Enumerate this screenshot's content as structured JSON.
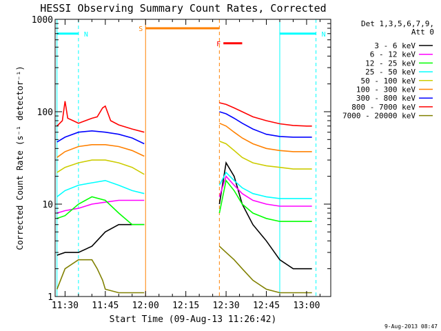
{
  "chart_data": {
    "type": "line",
    "title": "HESSI Observing Summary Count Rates, Corrected",
    "xlabel": "Start Time (09-Aug-13 11:26:42)",
    "ylabel": "Corrected Count Rate (s⁻¹ detector⁻¹)",
    "yscale": "log",
    "ylim": [
      1,
      1000
    ],
    "xlim_minutes": [
      -3.7,
      99
    ],
    "xticks": [
      {
        "value": 0,
        "label": "11:30"
      },
      {
        "value": 15,
        "label": "11:45"
      },
      {
        "value": 30,
        "label": "12:00"
      },
      {
        "value": 45,
        "label": "12:15"
      },
      {
        "value": 60,
        "label": "12:30"
      },
      {
        "value": 75,
        "label": "12:45"
      },
      {
        "value": 90,
        "label": "13:00"
      }
    ],
    "yticks": [
      {
        "value": 1,
        "label": "1"
      },
      {
        "value": 10,
        "label": "10"
      },
      {
        "value": 100,
        "label": "100"
      },
      {
        "value": 1000,
        "label": "1000"
      }
    ],
    "legend_title": [
      "Det 1,3,5,6,7,9,",
      "Att 0"
    ],
    "legend_position": "right",
    "footer_date": "9-Aug-2013 08:47",
    "gap_minutes": [
      30,
      57
    ],
    "series": [
      {
        "name": "3 - 6 keV",
        "color": "#000000",
        "x": [
          -3,
          0,
          5,
          10,
          15,
          20,
          25,
          29.5,
          57.5,
          60,
          63,
          66,
          70,
          75,
          80,
          85,
          90,
          92
        ],
        "y": [
          2.8,
          3,
          3,
          3.5,
          5,
          6,
          6,
          6,
          10,
          28,
          20,
          10,
          6,
          4,
          2.5,
          2,
          2,
          2
        ]
      },
      {
        "name": "6 - 12 keV",
        "color": "#ff00ff",
        "x": [
          -3,
          0,
          5,
          10,
          15,
          20,
          25,
          29.5,
          57.5,
          60,
          63,
          66,
          70,
          75,
          80,
          85,
          90,
          92
        ],
        "y": [
          8,
          8.5,
          9,
          10,
          10.5,
          11,
          11,
          11,
          12,
          20,
          16,
          13,
          11,
          10,
          9.5,
          9.5,
          9.5,
          9.5
        ]
      },
      {
        "name": "12 - 25 keV",
        "color": "#00ff00",
        "x": [
          -3,
          0,
          5,
          10,
          15,
          20,
          25,
          29.5,
          57.5,
          60,
          63,
          66,
          70,
          75,
          80,
          85,
          90,
          92
        ],
        "y": [
          7,
          7.5,
          10,
          12,
          11,
          8,
          6,
          6,
          8,
          18,
          14,
          10,
          8,
          7,
          6.5,
          6.5,
          6.5,
          6.5
        ]
      },
      {
        "name": "25 - 50 keV",
        "color": "#00ffff",
        "x": [
          -3,
          0,
          5,
          10,
          15,
          20,
          25,
          29.5,
          57.5,
          60,
          63,
          66,
          70,
          75,
          80,
          85,
          90,
          92
        ],
        "y": [
          12,
          14,
          16,
          17,
          18,
          16,
          14,
          13,
          16,
          22,
          18,
          15,
          13,
          12,
          11.5,
          11.5,
          11.5,
          11.5
        ]
      },
      {
        "name": "50 - 100 keV",
        "color": "#cccc00",
        "x": [
          -3,
          0,
          5,
          10,
          15,
          20,
          25,
          29.5,
          57.5,
          60,
          63,
          66,
          70,
          75,
          80,
          85,
          90,
          92
        ],
        "y": [
          22,
          25,
          28,
          30,
          30,
          28,
          25,
          21,
          48,
          45,
          38,
          32,
          28,
          26,
          25,
          24,
          24,
          24
        ]
      },
      {
        "name": "100 - 300 keV",
        "color": "#ff8000",
        "x": [
          -3,
          0,
          5,
          10,
          15,
          20,
          25,
          29.5,
          57.5,
          60,
          63,
          66,
          70,
          75,
          80,
          85,
          90,
          92
        ],
        "y": [
          32,
          37,
          42,
          44,
          44,
          42,
          38,
          33,
          75,
          70,
          60,
          52,
          45,
          40,
          38,
          37,
          37,
          37
        ]
      },
      {
        "name": "300 - 800 keV",
        "color": "#0000ff",
        "x": [
          -3,
          0,
          5,
          10,
          15,
          20,
          25,
          29.5,
          57.5,
          60,
          63,
          66,
          70,
          75,
          80,
          85,
          90,
          92
        ],
        "y": [
          47,
          53,
          60,
          62,
          60,
          57,
          52,
          45,
          100,
          95,
          85,
          75,
          65,
          57,
          54,
          53,
          53,
          53
        ]
      },
      {
        "name": "800 - 7000 keV",
        "color": "#ff0000",
        "x": [
          -3,
          -1,
          0,
          1,
          3,
          5,
          10,
          12,
          14,
          15,
          17,
          20,
          25,
          29.5,
          57.5,
          60,
          63,
          66,
          70,
          75,
          80,
          85,
          90,
          92
        ],
        "y": [
          70,
          80,
          130,
          85,
          80,
          75,
          85,
          88,
          110,
          115,
          80,
          72,
          65,
          60,
          125,
          120,
          110,
          100,
          88,
          80,
          74,
          71,
          70,
          70
        ]
      },
      {
        "name": "7000 - 20000 keV",
        "color": "#808000",
        "x": [
          -3,
          0,
          5,
          10,
          12,
          14,
          15,
          20,
          29.5,
          57.5,
          60,
          63,
          66,
          70,
          75,
          80,
          85,
          90,
          92
        ],
        "y": [
          1.2,
          2,
          2.5,
          2.5,
          2,
          1.5,
          1.2,
          1.1,
          1.1,
          3.5,
          3,
          2.5,
          2,
          1.5,
          1.2,
          1.1,
          1.1,
          1.1,
          1.1
        ]
      }
    ],
    "annotations": [
      {
        "label": "N",
        "color": "#00ffff",
        "x": [
          -3,
          5
        ],
        "y": 700,
        "dashed_at": 5,
        "solid_at": -3
      },
      {
        "label": "N",
        "color": "#00ffff",
        "x": [
          80,
          93.5
        ],
        "y": 700,
        "dashed_at": 93.5,
        "solid_at": 80
      },
      {
        "label": "S",
        "color": "#ff8000",
        "x": [
          30,
          57.5
        ],
        "y": 800,
        "dashed_at": 57.5,
        "solid_at": 30
      },
      {
        "label": "F",
        "color": "#ff0000",
        "x": [
          59,
          66
        ],
        "y": 550
      }
    ]
  }
}
